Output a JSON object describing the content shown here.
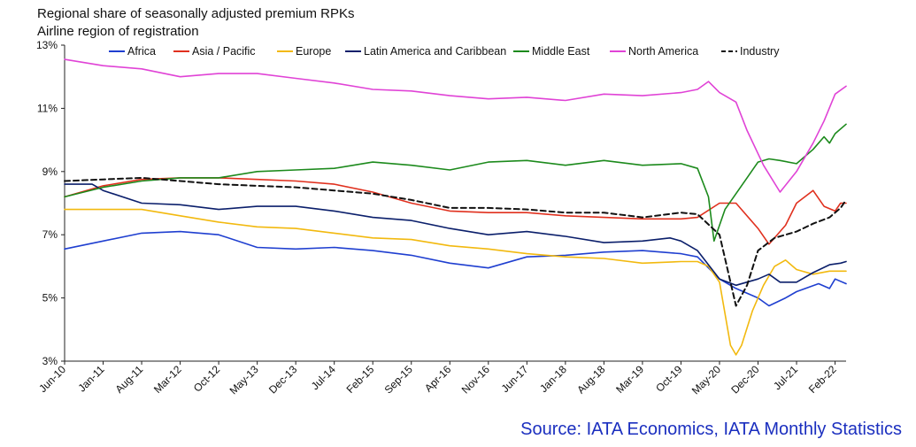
{
  "header": {
    "title": "Regional share of seasonally adjusted premium RPKs",
    "subtitle": "Airline region of registration"
  },
  "source": "Source: IATA Economics, IATA Monthly Statistics",
  "colors": {
    "Africa": "#1f3fd0",
    "Asia / Pacific": "#e0301e",
    "Europe": "#f2b90f",
    "Latin America and Caribbean": "#0b1f6b",
    "Middle East": "#1c8a1c",
    "North America": "#e043d6",
    "Industry": "#111111"
  },
  "chart_data": {
    "type": "line",
    "title": "Regional share of seasonally adjusted premium RPKs",
    "subtitle": "Airline region of registration",
    "xlabel": "",
    "ylabel": "",
    "x_start": "Jun-10",
    "x_end": "Apr-22",
    "x_ticks": [
      "Jun-10",
      "Jan-11",
      "Aug-11",
      "Mar-12",
      "Oct-12",
      "May-13",
      "Dec-13",
      "Jul-14",
      "Feb-15",
      "Sep-15",
      "Apr-16",
      "Nov-16",
      "Jun-17",
      "Jan-18",
      "Aug-18",
      "Mar-19",
      "Oct-19",
      "May-20",
      "Dec-20",
      "Jul-21",
      "Feb-22"
    ],
    "ylim": [
      3,
      13
    ],
    "y_ticks": [
      "3%",
      "5%",
      "7%",
      "9%",
      "11%",
      "13%"
    ],
    "y_tick_values": [
      3,
      5,
      7,
      9,
      11,
      13
    ],
    "grid": false,
    "legend": "top",
    "series": [
      {
        "name": "Africa",
        "style": "solid",
        "points": [
          [
            "Jun-10",
            6.55
          ],
          [
            "Jan-11",
            6.8
          ],
          [
            "Aug-11",
            7.05
          ],
          [
            "Mar-12",
            7.1
          ],
          [
            "Oct-12",
            7.0
          ],
          [
            "May-13",
            6.6
          ],
          [
            "Dec-13",
            6.55
          ],
          [
            "Jul-14",
            6.6
          ],
          [
            "Feb-15",
            6.5
          ],
          [
            "Sep-15",
            6.35
          ],
          [
            "Apr-16",
            6.1
          ],
          [
            "Nov-16",
            5.95
          ],
          [
            "Jun-17",
            6.3
          ],
          [
            "Jan-18",
            6.35
          ],
          [
            "Aug-18",
            6.45
          ],
          [
            "Mar-19",
            6.5
          ],
          [
            "Oct-19",
            6.4
          ],
          [
            "Jan-20",
            6.3
          ],
          [
            "May-20",
            5.6
          ],
          [
            "Aug-20",
            5.3
          ],
          [
            "Dec-20",
            5.0
          ],
          [
            "Feb-21",
            4.75
          ],
          [
            "May-21",
            5.0
          ],
          [
            "Jul-21",
            5.2
          ],
          [
            "Nov-21",
            5.45
          ],
          [
            "Jan-22",
            5.3
          ],
          [
            "Feb-22",
            5.6
          ],
          [
            "Apr-22",
            5.45
          ]
        ]
      },
      {
        "name": "Asia / Pacific",
        "style": "solid",
        "points": [
          [
            "Jun-10",
            8.2
          ],
          [
            "Jan-11",
            8.55
          ],
          [
            "Aug-11",
            8.75
          ],
          [
            "Mar-12",
            8.8
          ],
          [
            "Oct-12",
            8.8
          ],
          [
            "May-13",
            8.75
          ],
          [
            "Dec-13",
            8.7
          ],
          [
            "Jul-14",
            8.6
          ],
          [
            "Feb-15",
            8.35
          ],
          [
            "Sep-15",
            8.0
          ],
          [
            "Apr-16",
            7.75
          ],
          [
            "Nov-16",
            7.7
          ],
          [
            "Jun-17",
            7.7
          ],
          [
            "Jan-18",
            7.6
          ],
          [
            "Aug-18",
            7.55
          ],
          [
            "Mar-19",
            7.5
          ],
          [
            "Oct-19",
            7.5
          ],
          [
            "Jan-20",
            7.55
          ],
          [
            "May-20",
            8.0
          ],
          [
            "Aug-20",
            8.0
          ],
          [
            "Dec-20",
            7.2
          ],
          [
            "Feb-21",
            6.7
          ],
          [
            "May-21",
            7.3
          ],
          [
            "Jul-21",
            8.0
          ],
          [
            "Oct-21",
            8.4
          ],
          [
            "Dec-21",
            7.9
          ],
          [
            "Feb-22",
            7.75
          ],
          [
            "Mar-22",
            8.0
          ],
          [
            "Apr-22",
            8.0
          ]
        ]
      },
      {
        "name": "Europe",
        "style": "solid",
        "points": [
          [
            "Jun-10",
            7.8
          ],
          [
            "Jan-11",
            7.8
          ],
          [
            "Aug-11",
            7.8
          ],
          [
            "Mar-12",
            7.6
          ],
          [
            "Oct-12",
            7.4
          ],
          [
            "May-13",
            7.25
          ],
          [
            "Dec-13",
            7.2
          ],
          [
            "Jul-14",
            7.05
          ],
          [
            "Feb-15",
            6.9
          ],
          [
            "Sep-15",
            6.85
          ],
          [
            "Apr-16",
            6.65
          ],
          [
            "Nov-16",
            6.55
          ],
          [
            "Jun-17",
            6.4
          ],
          [
            "Jan-18",
            6.3
          ],
          [
            "Aug-18",
            6.25
          ],
          [
            "Mar-19",
            6.1
          ],
          [
            "Oct-19",
            6.15
          ],
          [
            "Jan-20",
            6.15
          ],
          [
            "Mar-20",
            6.0
          ],
          [
            "May-20",
            5.5
          ],
          [
            "Jul-20",
            3.5
          ],
          [
            "Aug-20",
            3.2
          ],
          [
            "Sep-20",
            3.5
          ],
          [
            "Nov-20",
            4.6
          ],
          [
            "Jan-21",
            5.4
          ],
          [
            "Mar-21",
            6.0
          ],
          [
            "May-21",
            6.2
          ],
          [
            "Jul-21",
            5.9
          ],
          [
            "Oct-21",
            5.75
          ],
          [
            "Jan-22",
            5.85
          ],
          [
            "Apr-22",
            5.85
          ]
        ]
      },
      {
        "name": "Latin America and Caribbean",
        "style": "solid",
        "points": [
          [
            "Jun-10",
            8.6
          ],
          [
            "Nov-10",
            8.6
          ],
          [
            "Jan-11",
            8.4
          ],
          [
            "Aug-11",
            8.0
          ],
          [
            "Mar-12",
            7.95
          ],
          [
            "Oct-12",
            7.8
          ],
          [
            "May-13",
            7.9
          ],
          [
            "Dec-13",
            7.9
          ],
          [
            "Jul-14",
            7.75
          ],
          [
            "Feb-15",
            7.55
          ],
          [
            "Sep-15",
            7.45
          ],
          [
            "Apr-16",
            7.2
          ],
          [
            "Nov-16",
            7.0
          ],
          [
            "Jun-17",
            7.1
          ],
          [
            "Jan-18",
            6.95
          ],
          [
            "Aug-18",
            6.75
          ],
          [
            "Mar-19",
            6.8
          ],
          [
            "Aug-19",
            6.9
          ],
          [
            "Oct-19",
            6.8
          ],
          [
            "Jan-20",
            6.5
          ],
          [
            "May-20",
            5.6
          ],
          [
            "Aug-20",
            5.4
          ],
          [
            "Dec-20",
            5.6
          ],
          [
            "Feb-21",
            5.75
          ],
          [
            "Apr-21",
            5.5
          ],
          [
            "Jul-21",
            5.5
          ],
          [
            "Oct-21",
            5.8
          ],
          [
            "Jan-22",
            6.05
          ],
          [
            "Mar-22",
            6.1
          ],
          [
            "Apr-22",
            6.15
          ]
        ]
      },
      {
        "name": "Middle East",
        "style": "solid",
        "points": [
          [
            "Jun-10",
            8.2
          ],
          [
            "Jan-11",
            8.5
          ],
          [
            "Aug-11",
            8.7
          ],
          [
            "Mar-12",
            8.8
          ],
          [
            "Oct-12",
            8.8
          ],
          [
            "May-13",
            9.0
          ],
          [
            "Dec-13",
            9.05
          ],
          [
            "Jul-14",
            9.1
          ],
          [
            "Feb-15",
            9.3
          ],
          [
            "Sep-15",
            9.2
          ],
          [
            "Apr-16",
            9.05
          ],
          [
            "Nov-16",
            9.3
          ],
          [
            "Jun-17",
            9.35
          ],
          [
            "Jan-18",
            9.2
          ],
          [
            "Aug-18",
            9.35
          ],
          [
            "Mar-19",
            9.2
          ],
          [
            "Oct-19",
            9.25
          ],
          [
            "Jan-20",
            9.1
          ],
          [
            "Mar-20",
            8.2
          ],
          [
            "Apr-20",
            6.8
          ],
          [
            "Jun-20",
            7.8
          ],
          [
            "Aug-20",
            8.3
          ],
          [
            "Oct-20",
            8.8
          ],
          [
            "Dec-20",
            9.3
          ],
          [
            "Feb-21",
            9.4
          ],
          [
            "Apr-21",
            9.35
          ],
          [
            "Jul-21",
            9.25
          ],
          [
            "Oct-21",
            9.7
          ],
          [
            "Dec-21",
            10.1
          ],
          [
            "Jan-22",
            9.9
          ],
          [
            "Feb-22",
            10.2
          ],
          [
            "Apr-22",
            10.5
          ]
        ]
      },
      {
        "name": "North America",
        "style": "solid",
        "points": [
          [
            "Jun-10",
            12.55
          ],
          [
            "Jan-11",
            12.35
          ],
          [
            "Aug-11",
            12.25
          ],
          [
            "Mar-12",
            12.0
          ],
          [
            "Oct-12",
            12.1
          ],
          [
            "May-13",
            12.1
          ],
          [
            "Dec-13",
            11.95
          ],
          [
            "Jul-14",
            11.8
          ],
          [
            "Feb-15",
            11.6
          ],
          [
            "Sep-15",
            11.55
          ],
          [
            "Apr-16",
            11.4
          ],
          [
            "Nov-16",
            11.3
          ],
          [
            "Jun-17",
            11.35
          ],
          [
            "Jan-18",
            11.25
          ],
          [
            "Aug-18",
            11.45
          ],
          [
            "Mar-19",
            11.4
          ],
          [
            "Oct-19",
            11.5
          ],
          [
            "Jan-20",
            11.6
          ],
          [
            "Mar-20",
            11.85
          ],
          [
            "May-20",
            11.5
          ],
          [
            "Aug-20",
            11.2
          ],
          [
            "Oct-20",
            10.3
          ],
          [
            "Jan-21",
            9.2
          ],
          [
            "Apr-21",
            8.35
          ],
          [
            "Jul-21",
            9.0
          ],
          [
            "Oct-21",
            9.9
          ],
          [
            "Dec-21",
            10.6
          ],
          [
            "Feb-22",
            11.45
          ],
          [
            "Apr-22",
            11.7
          ]
        ]
      },
      {
        "name": "Industry",
        "style": "dashed",
        "points": [
          [
            "Jun-10",
            8.7
          ],
          [
            "Jan-11",
            8.75
          ],
          [
            "Aug-11",
            8.8
          ],
          [
            "Mar-12",
            8.7
          ],
          [
            "Oct-12",
            8.6
          ],
          [
            "May-13",
            8.55
          ],
          [
            "Dec-13",
            8.5
          ],
          [
            "Jul-14",
            8.4
          ],
          [
            "Feb-15",
            8.3
          ],
          [
            "Sep-15",
            8.1
          ],
          [
            "Apr-16",
            7.85
          ],
          [
            "Nov-16",
            7.85
          ],
          [
            "Jun-17",
            7.8
          ],
          [
            "Jan-18",
            7.7
          ],
          [
            "Aug-18",
            7.7
          ],
          [
            "Mar-19",
            7.55
          ],
          [
            "Oct-19",
            7.7
          ],
          [
            "Jan-20",
            7.65
          ],
          [
            "May-20",
            7.0
          ],
          [
            "Jul-20",
            5.5
          ],
          [
            "Aug-20",
            4.75
          ],
          [
            "Oct-20",
            5.4
          ],
          [
            "Dec-20",
            6.5
          ],
          [
            "Mar-21",
            6.9
          ],
          [
            "Jul-21",
            7.1
          ],
          [
            "Oct-21",
            7.35
          ],
          [
            "Jan-22",
            7.55
          ],
          [
            "Mar-22",
            7.85
          ],
          [
            "Apr-22",
            8.1
          ]
        ]
      }
    ]
  }
}
